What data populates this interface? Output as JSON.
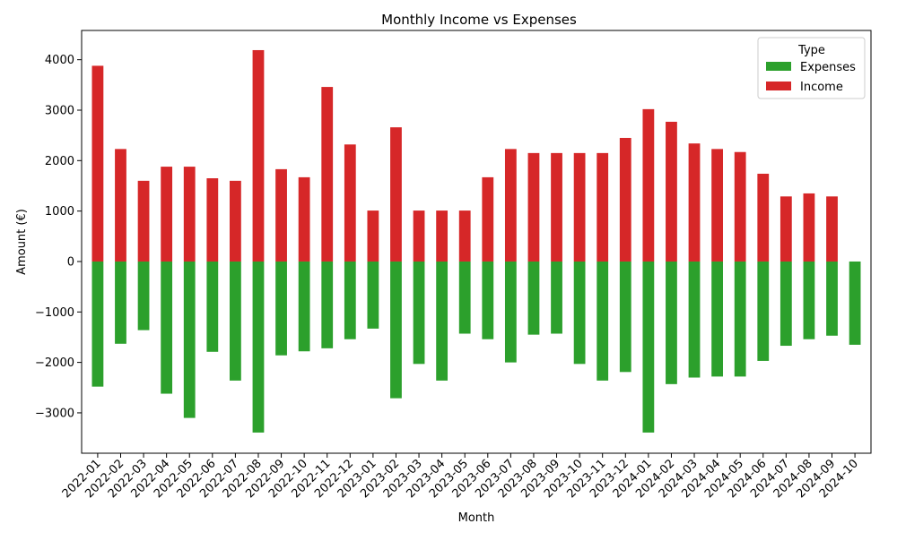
{
  "chart_data": {
    "type": "bar",
    "title": "Monthly Income vs Expenses",
    "xlabel": "Month",
    "ylabel": "Amount (€)",
    "ylim": [
      -3800,
      4580
    ],
    "yticks": [
      -3000,
      -2000,
      -1000,
      0,
      1000,
      2000,
      3000,
      4000
    ],
    "grid": false,
    "legend": {
      "title": "Type",
      "placement": "top-right"
    },
    "categories": [
      "2022-01",
      "2022-02",
      "2022-03",
      "2022-04",
      "2022-05",
      "2022-06",
      "2022-07",
      "2022-08",
      "2022-09",
      "2022-10",
      "2022-11",
      "2022-12",
      "2023-01",
      "2023-02",
      "2023-03",
      "2023-04",
      "2023-05",
      "2023-06",
      "2023-07",
      "2023-08",
      "2023-09",
      "2023-10",
      "2023-11",
      "2023-12",
      "2024-01",
      "2024-02",
      "2024-03",
      "2024-04",
      "2024-05",
      "2024-06",
      "2024-07",
      "2024-08",
      "2024-09",
      "2024-10"
    ],
    "series": [
      {
        "name": "Expenses",
        "color": "#2ca02c",
        "values": [
          -2480,
          -1630,
          -1360,
          -2620,
          -3100,
          -1790,
          -2360,
          -3390,
          -1860,
          -1780,
          -1720,
          -1540,
          -1330,
          -2710,
          -2030,
          -2360,
          -1430,
          -1540,
          -2000,
          -1450,
          -1430,
          -2030,
          -2360,
          -2190,
          -3390,
          -2430,
          -2300,
          -2280,
          -2280,
          -1970,
          -1670,
          -1540,
          -1470,
          -1650
        ]
      },
      {
        "name": "Income",
        "color": "#d62728",
        "values": [
          3880,
          2230,
          1600,
          1880,
          1880,
          1650,
          1600,
          4190,
          1830,
          1670,
          3460,
          2320,
          1010,
          2660,
          1010,
          1010,
          1010,
          1670,
          2230,
          2150,
          2150,
          2150,
          2150,
          2450,
          3020,
          2770,
          2340,
          2230,
          2170,
          1740,
          1290,
          1350,
          1290,
          0
        ]
      }
    ]
  }
}
